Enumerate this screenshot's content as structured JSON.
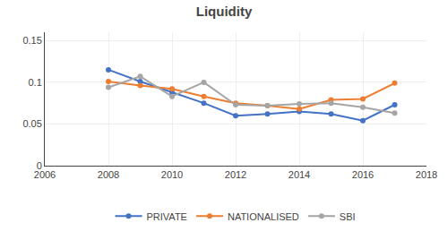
{
  "chart_data": {
    "type": "line",
    "title": "Liquidity",
    "x": [
      2008,
      2009,
      2010,
      2011,
      2012,
      2013,
      2014,
      2015,
      2016,
      2017
    ],
    "series": [
      {
        "name": "PRIVATE",
        "color": "#4472C4",
        "values": [
          0.115,
          0.101,
          0.088,
          0.075,
          0.06,
          0.062,
          0.065,
          0.062,
          0.054,
          0.073
        ]
      },
      {
        "name": "NATIONALISED",
        "color": "#ED7D31",
        "values": [
          0.101,
          0.096,
          0.092,
          0.083,
          0.075,
          0.072,
          0.068,
          0.079,
          0.08,
          0.099
        ]
      },
      {
        "name": "SBI",
        "color": "#A5A5A5",
        "values": [
          0.094,
          0.107,
          0.083,
          0.1,
          0.073,
          0.072,
          0.074,
          0.075,
          0.07,
          0.063
        ]
      }
    ],
    "marker": "circle",
    "xlim": [
      2006,
      2018
    ],
    "xticks": [
      2006,
      2008,
      2010,
      2012,
      2014,
      2016,
      2018
    ],
    "ylim": [
      0,
      0.16
    ],
    "yticks": [
      0,
      0.05,
      0.1,
      0.15
    ],
    "grid": true,
    "legend": "bottom"
  }
}
